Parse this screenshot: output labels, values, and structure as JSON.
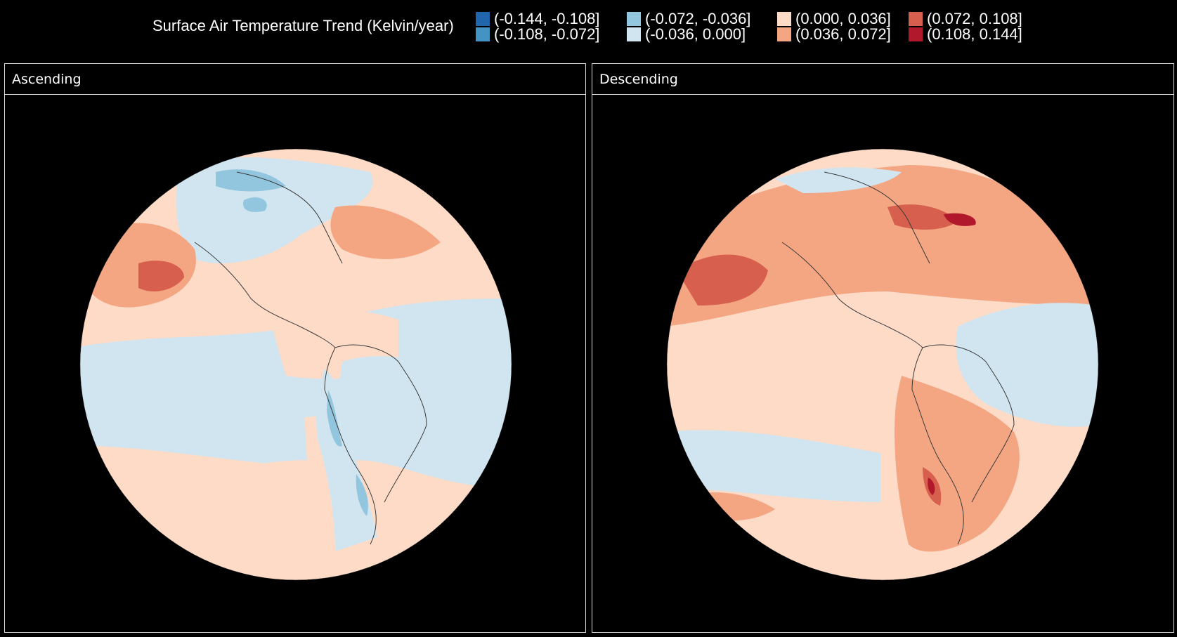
{
  "legend": {
    "title": "Surface Air Temperature Trend (Kelvin/year)",
    "bins": [
      {
        "label": "(-0.144, -0.108]",
        "color": "#2166ac"
      },
      {
        "label": "(-0.108, -0.072]",
        "color": "#4393c3"
      },
      {
        "label": "(-0.072, -0.036]",
        "color": "#92c5de"
      },
      {
        "label": "(-0.036, 0.000]",
        "color": "#d1e5f0"
      },
      {
        "label": "(0.000, 0.036]",
        "color": "#fddbc7"
      },
      {
        "label": "(0.036, 0.072]",
        "color": "#f4a582"
      },
      {
        "label": "(0.072, 0.108]",
        "color": "#d6604d"
      },
      {
        "label": "(0.108, 0.144]",
        "color": "#b2182b"
      }
    ]
  },
  "panels": [
    {
      "title": "Ascending",
      "base_color": "#fddbc7"
    },
    {
      "title": "Descending",
      "base_color": "#fddbc7"
    }
  ],
  "colors": {
    "background": "#000000",
    "frame": "#d9d9d9",
    "coastline": "#3a3a3a"
  }
}
